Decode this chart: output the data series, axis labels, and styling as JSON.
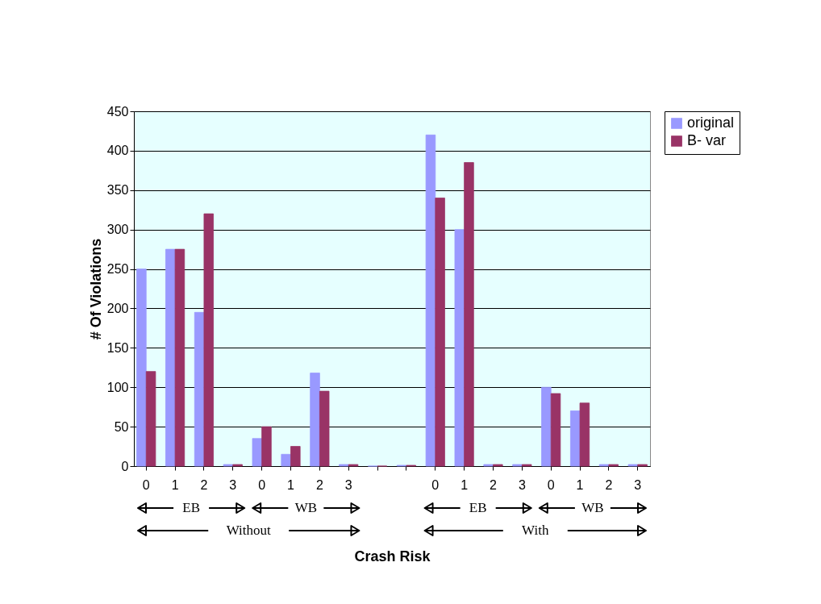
{
  "chart_data": {
    "type": "bar",
    "xlabel": "Crash Risk",
    "ylabel": "# Of Violations",
    "categories": [
      "0",
      "1",
      "2",
      "3",
      "0",
      "1",
      "2",
      "3",
      null,
      null,
      "0",
      "1",
      "2",
      "3",
      "0",
      "1",
      "2",
      "3"
    ],
    "series": [
      {
        "name": "original",
        "color": "#9999ff",
        "values": [
          250,
          275,
          195,
          2,
          35,
          15,
          118,
          2,
          0,
          1,
          420,
          300,
          2,
          2,
          100,
          70,
          2,
          2
        ]
      },
      {
        "name": "B- var",
        "color": "#993366",
        "values": [
          120,
          275,
          320,
          2,
          50,
          25,
          95,
          2,
          0,
          1,
          340,
          385,
          2,
          2,
          92,
          80,
          2,
          2
        ]
      }
    ],
    "ylim": [
      0,
      450
    ],
    "yticks": [
      0,
      50,
      100,
      150,
      200,
      250,
      300,
      350,
      400,
      450
    ],
    "grid": "y",
    "legend": "right",
    "annotations": [
      "EB",
      "WB",
      "EB",
      "WB",
      "Without",
      "With"
    ]
  }
}
